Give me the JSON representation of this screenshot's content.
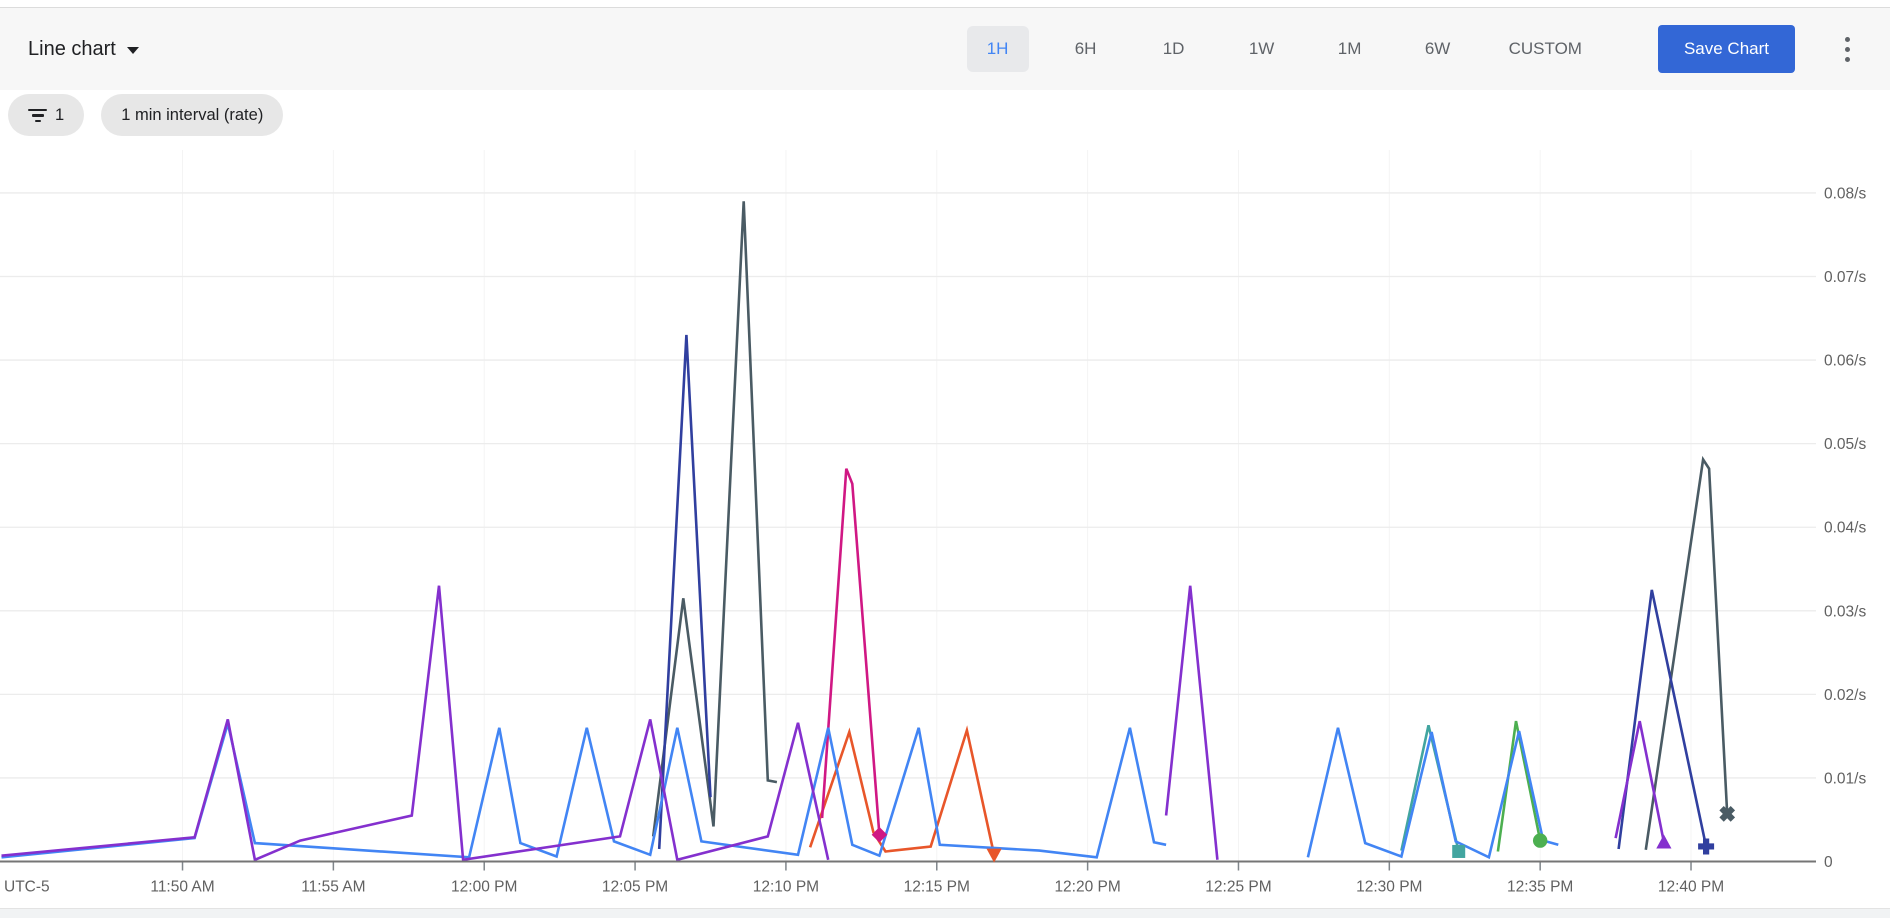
{
  "header": {
    "chart_type_label": "Line chart",
    "ranges": [
      {
        "label": "1H",
        "active": true
      },
      {
        "label": "6H",
        "active": false
      },
      {
        "label": "1D",
        "active": false
      },
      {
        "label": "1W",
        "active": false
      },
      {
        "label": "1M",
        "active": false
      },
      {
        "label": "6W",
        "active": false
      },
      {
        "label": "CUSTOM",
        "active": false
      }
    ],
    "save_button_label": "Save Chart",
    "icons": {
      "dropdown": "arrow-drop-down",
      "overflow": "more-vert"
    }
  },
  "filters": {
    "filter_chip_count": "1",
    "interval_chip_label": "1 min interval (rate)"
  },
  "style": {
    "accent_blue": "#4285f4",
    "save_button_bg": "#3367d6",
    "grid_h_color": "#ececec",
    "grid_v_color": "#f4f4f4",
    "axis_color": "#757575",
    "tick_color": "#80868b",
    "label_color": "#616161"
  },
  "chart_data": {
    "type": "line",
    "title": "",
    "x_axis": {
      "timezone_label": "UTC-5",
      "tick_minutes": [
        6,
        11,
        16,
        21,
        26,
        31,
        36,
        41,
        46,
        51,
        56
      ],
      "tick_labels": [
        "11:50 AM",
        "11:55 AM",
        "12:00 PM",
        "12:05 PM",
        "12:10 PM",
        "12:15 PM",
        "12:20 PM",
        "12:25 PM",
        "12:30 PM",
        "12:35 PM",
        "12:40 PM"
      ],
      "range_minutes": [
        0,
        60
      ],
      "note": "minutes measured from 11:44 AM"
    },
    "y_axis": {
      "unit": "/s",
      "ticks": [
        {
          "value": 0,
          "label": "0"
        },
        {
          "value": 0.01,
          "label": "0.01/s"
        },
        {
          "value": 0.02,
          "label": "0.02/s"
        },
        {
          "value": 0.03,
          "label": "0.03/s"
        },
        {
          "value": 0.04,
          "label": "0.04/s"
        },
        {
          "value": 0.05,
          "label": "0.05/s"
        },
        {
          "value": 0.06,
          "label": "0.06/s"
        },
        {
          "value": 0.07,
          "label": "0.07/s"
        },
        {
          "value": 0.08,
          "label": "0.08/s"
        }
      ],
      "range": [
        0,
        0.08
      ]
    },
    "grid": true,
    "legend": "none",
    "series": [
      {
        "name": "series-slate",
        "color": "#4a5b64",
        "end_marker": "x-cross",
        "segments": [
          [
            [
              21.6,
              0.003
            ],
            [
              22.6,
              0.0315
            ],
            [
              23.6,
              0.0042
            ],
            [
              24.6,
              0.079
            ],
            [
              25.4,
              0.0097
            ],
            [
              25.7,
              0.0095
            ]
          ],
          [
            [
              54.5,
              0.0014
            ],
            [
              56.4,
              0.0481
            ],
            [
              56.6,
              0.047
            ],
            [
              57.2,
              0.0057
            ]
          ]
        ]
      },
      {
        "name": "series-navy",
        "color": "#303f9f",
        "end_marker": "plus",
        "segments": [
          [
            [
              21.8,
              0.0015
            ],
            [
              22.7,
              0.063
            ],
            [
              23.5,
              0.0077
            ]
          ],
          [
            [
              53.6,
              0.0015
            ],
            [
              54.7,
              0.0325
            ],
            [
              56.5,
              0.0018
            ]
          ]
        ]
      },
      {
        "name": "series-teal",
        "color": "#42a5a0",
        "end_marker": "square",
        "segments": [
          [
            [
              46.4,
              0.0013
            ],
            [
              47.3,
              0.0163
            ],
            [
              48.3,
              0.0012
            ]
          ]
        ]
      },
      {
        "name": "series-green",
        "color": "#4caf50",
        "end_marker": "circle",
        "segments": [
          [
            [
              49.6,
              0.0012
            ],
            [
              50.2,
              0.0168
            ],
            [
              51.0,
              0.0025
            ]
          ]
        ]
      },
      {
        "name": "series-orange",
        "color": "#e8562a",
        "end_marker": "triangle-down",
        "segments": [
          [
            [
              26.8,
              0.0017
            ],
            [
              28.1,
              0.0155
            ],
            [
              28.9,
              0.0035
            ],
            [
              29.3,
              0.0012
            ],
            [
              30.8,
              0.0018
            ],
            [
              32.0,
              0.0157
            ],
            [
              32.9,
              0.0008
            ]
          ]
        ]
      },
      {
        "name": "series-magenta",
        "color": "#d01884",
        "end_marker": "diamond",
        "segments": [
          [
            [
              27.2,
              0.0052
            ],
            [
              28.0,
              0.047
            ],
            [
              28.2,
              0.0452
            ],
            [
              29.1,
              0.0032
            ]
          ]
        ]
      },
      {
        "name": "series-blue",
        "color": "#4285f4",
        "end_marker": null,
        "segments": [
          [
            [
              0,
              0.0005
            ],
            [
              6.4,
              0.0028
            ],
            [
              7.5,
              0.0165
            ],
            [
              8.4,
              0.0022
            ],
            [
              15.5,
              0.0005
            ],
            [
              16.5,
              0.016
            ],
            [
              17.2,
              0.0022
            ],
            [
              18.4,
              0.0006
            ],
            [
              19.4,
              0.016
            ],
            [
              20.3,
              0.0024
            ],
            [
              21.5,
              0.0008
            ],
            [
              22.4,
              0.016
            ],
            [
              23.2,
              0.0024
            ],
            [
              26.4,
              0.0008
            ],
            [
              27.4,
              0.016
            ],
            [
              28.2,
              0.002
            ],
            [
              29.1,
              0.0007
            ],
            [
              30.4,
              0.016
            ],
            [
              31.1,
              0.002
            ],
            [
              34.4,
              0.0013
            ],
            [
              36.3,
              0.0005
            ],
            [
              37.4,
              0.016
            ],
            [
              38.2,
              0.0023
            ],
            [
              38.6,
              0.002
            ]
          ],
          [
            [
              43.3,
              0.0005
            ],
            [
              44.3,
              0.016
            ],
            [
              45.2,
              0.0022
            ],
            [
              46.4,
              0.0006
            ],
            [
              47.4,
              0.0155
            ],
            [
              48.2,
              0.0024
            ],
            [
              49.3,
              0.0005
            ],
            [
              50.3,
              0.0156
            ],
            [
              51.1,
              0.0025
            ],
            [
              51.6,
              0.002
            ]
          ]
        ]
      },
      {
        "name": "series-purple",
        "color": "#8430ce",
        "end_marker": "triangle-up",
        "segments": [
          [
            [
              0,
              0.0007
            ],
            [
              6.4,
              0.0029
            ],
            [
              7.5,
              0.017
            ],
            [
              8.4,
              0.0002
            ],
            [
              9.9,
              0.0025
            ],
            [
              13.6,
              0.0055
            ],
            [
              14.5,
              0.033
            ],
            [
              15.3,
              0.0002
            ],
            [
              20.5,
              0.003
            ],
            [
              21.5,
              0.017
            ],
            [
              22.4,
              0.0002
            ],
            [
              25.4,
              0.003
            ],
            [
              26.4,
              0.0166
            ],
            [
              27.4,
              0.0002
            ]
          ],
          [
            [
              38.6,
              0.0055
            ],
            [
              39.4,
              0.033
            ],
            [
              40.3,
              0.0002
            ]
          ],
          [
            [
              53.5,
              0.0028
            ],
            [
              54.3,
              0.0168
            ],
            [
              55.1,
              0.0023
            ]
          ]
        ]
      }
    ]
  }
}
